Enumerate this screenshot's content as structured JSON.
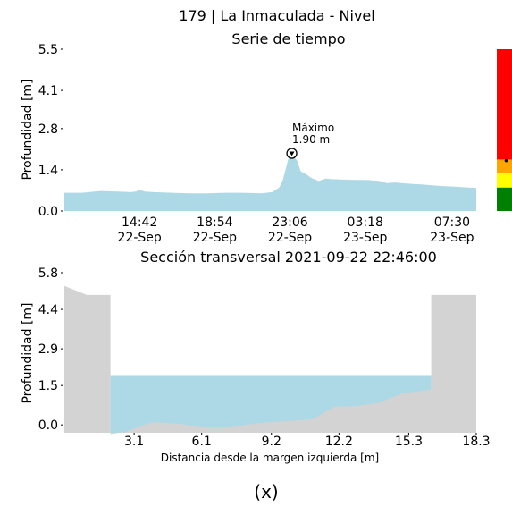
{
  "figure": {
    "title": "179 | La Inmaculada - Nivel",
    "caption": "(x)"
  },
  "chart_data": [
    {
      "type": "area",
      "title": "Serie de tiempo",
      "ylabel": "Profundidad [m]",
      "xlabel": "",
      "ylim": [
        0,
        5.5
      ],
      "yticks": [
        "0.0",
        "1.4",
        "2.8",
        "4.1",
        "5.5"
      ],
      "xticks": [
        {
          "time": "14:42",
          "date": "22-Sep"
        },
        {
          "time": "18:54",
          "date": "22-Sep"
        },
        {
          "time": "23:06",
          "date": "22-Sep"
        },
        {
          "time": "03:18",
          "date": "23-Sep"
        },
        {
          "time": "07:30",
          "date": "23-Sep"
        }
      ],
      "fill_color": "#add8e6",
      "series_hours_since_1030_22sep": [
        [
          0,
          0.62
        ],
        [
          1,
          0.62
        ],
        [
          2,
          0.68
        ],
        [
          3,
          0.66
        ],
        [
          3.7,
          0.64
        ],
        [
          4,
          0.66
        ],
        [
          4.2,
          0.72
        ],
        [
          4.5,
          0.66
        ],
        [
          5,
          0.64
        ],
        [
          6,
          0.62
        ],
        [
          7,
          0.6
        ],
        [
          8,
          0.6
        ],
        [
          9,
          0.62
        ],
        [
          10,
          0.62
        ],
        [
          11,
          0.6
        ],
        [
          11.6,
          0.64
        ],
        [
          12,
          0.8
        ],
        [
          12.2,
          1.05
        ],
        [
          12.35,
          1.4
        ],
        [
          12.5,
          1.75
        ],
        [
          12.6,
          1.9
        ],
        [
          12.8,
          1.88
        ],
        [
          13.0,
          1.7
        ],
        [
          13.2,
          1.35
        ],
        [
          13.5,
          1.25
        ],
        [
          13.8,
          1.12
        ],
        [
          14.2,
          1.02
        ],
        [
          14.6,
          1.1
        ],
        [
          15,
          1.08
        ],
        [
          16,
          1.06
        ],
        [
          17,
          1.05
        ],
        [
          17.6,
          1.02
        ],
        [
          18,
          0.95
        ],
        [
          18.5,
          0.97
        ],
        [
          19,
          0.94
        ],
        [
          20,
          0.9
        ],
        [
          21,
          0.85
        ],
        [
          22,
          0.82
        ],
        [
          23,
          0.78
        ]
      ],
      "annotation": {
        "label": "Máximo",
        "value": "1.90 m",
        "x_hours": 12.7,
        "y": 1.9
      },
      "alert_bar": [
        {
          "from": 0,
          "to": 0.8,
          "color": "#008000"
        },
        {
          "from": 0.8,
          "to": 1.3,
          "color": "#ffff00"
        },
        {
          "from": 1.3,
          "to": 1.75,
          "color": "#ffa500"
        },
        {
          "from": 1.75,
          "to": 5.5,
          "color": "#ff0000"
        }
      ],
      "current_marker": 1.5
    },
    {
      "type": "area",
      "title": "Sección transversal 2021-09-22 22:46:00",
      "xlabel": "Distancia desde la margen izquierda [m]",
      "ylabel": "Profundidad [m]",
      "ylim": [
        -0.3,
        5.8
      ],
      "xlim": [
        0,
        18.3
      ],
      "yticks": [
        "0.0",
        "1.5",
        "2.9",
        "4.4",
        "5.8"
      ],
      "xticks": [
        "3.1",
        "6.1",
        "9.2",
        "12.2",
        "15.3",
        "18.3"
      ],
      "water_level": 1.9,
      "water_color": "#add8e6",
      "ground_color": "#d3d3d3",
      "ground_profile": [
        [
          0,
          5.3
        ],
        [
          1.0,
          4.95
        ],
        [
          2.05,
          4.95
        ],
        [
          2.05,
          -0.35
        ],
        [
          2.8,
          -0.25
        ],
        [
          3.5,
          0.0
        ],
        [
          4.0,
          0.1
        ],
        [
          5.0,
          0.05
        ],
        [
          6.0,
          -0.05
        ],
        [
          7.0,
          -0.1
        ],
        [
          8.0,
          0.0
        ],
        [
          9.0,
          0.1
        ],
        [
          10.0,
          0.15
        ],
        [
          11.0,
          0.2
        ],
        [
          12.0,
          0.7
        ],
        [
          13.0,
          0.72
        ],
        [
          14.0,
          0.85
        ],
        [
          15.0,
          1.2
        ],
        [
          16.3,
          1.35
        ],
        [
          16.3,
          4.95
        ],
        [
          18.3,
          4.95
        ]
      ]
    }
  ]
}
